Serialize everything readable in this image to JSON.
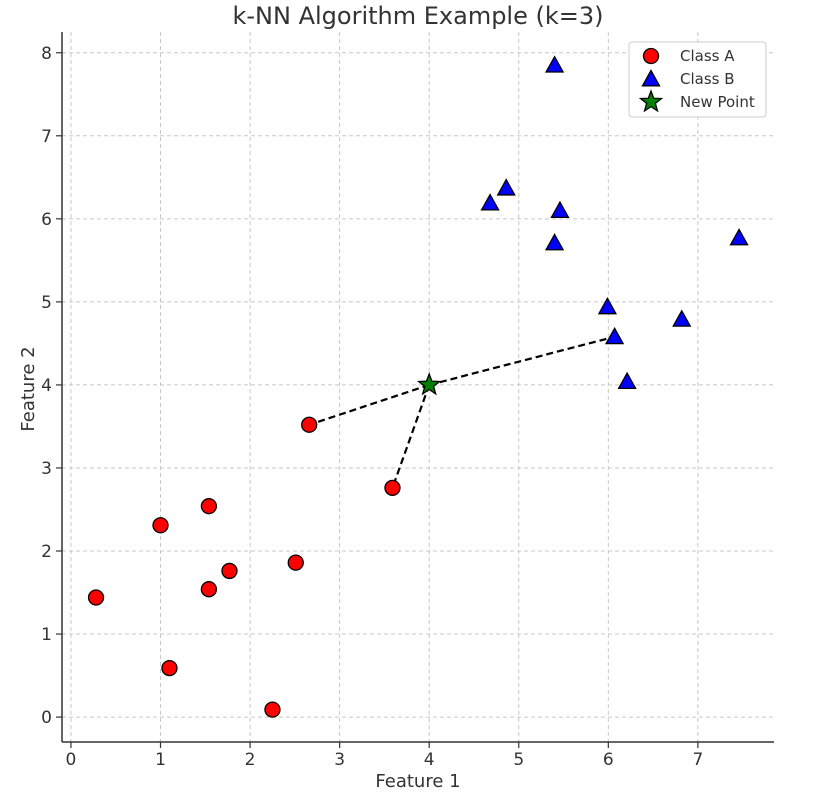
{
  "chart_data": {
    "type": "scatter",
    "title": "k-NN Algorithm Example (k=3)",
    "xlabel": "Feature 1",
    "ylabel": "Feature 2",
    "xlim": [
      -0.1,
      7.85
    ],
    "ylim": [
      -0.3,
      8.25
    ],
    "xticks": [
      0,
      1,
      2,
      3,
      4,
      5,
      6,
      7
    ],
    "yticks": [
      0,
      1,
      2,
      3,
      4,
      5,
      6,
      7,
      8
    ],
    "grid": true,
    "legend_position": "top-right",
    "series": [
      {
        "name": "Class A",
        "marker": "circle",
        "color": "#ff0000",
        "points": [
          [
            0.28,
            1.44
          ],
          [
            1.0,
            2.31
          ],
          [
            1.1,
            0.59
          ],
          [
            1.54,
            2.54
          ],
          [
            1.54,
            1.54
          ],
          [
            1.77,
            1.76
          ],
          [
            2.25,
            0.09
          ],
          [
            2.51,
            1.86
          ],
          [
            2.66,
            3.52
          ],
          [
            3.59,
            2.76
          ]
        ]
      },
      {
        "name": "Class B",
        "marker": "triangle",
        "color": "#0000ff",
        "points": [
          [
            4.68,
            6.19
          ],
          [
            4.86,
            6.37
          ],
          [
            5.4,
            7.85
          ],
          [
            5.4,
            5.71
          ],
          [
            5.46,
            6.1
          ],
          [
            5.99,
            4.94
          ],
          [
            6.07,
            4.58
          ],
          [
            6.21,
            4.04
          ],
          [
            6.82,
            4.79
          ],
          [
            7.46,
            5.77
          ]
        ]
      },
      {
        "name": "New Point",
        "marker": "star",
        "color": "#008000",
        "points": [
          [
            4.0,
            4.0
          ]
        ]
      }
    ],
    "neighbor_lines": [
      {
        "from": [
          4.0,
          4.0
        ],
        "to": [
          2.66,
          3.52
        ]
      },
      {
        "from": [
          4.0,
          4.0
        ],
        "to": [
          3.59,
          2.76
        ]
      },
      {
        "from": [
          4.0,
          4.0
        ],
        "to": [
          6.07,
          4.58
        ]
      }
    ]
  }
}
